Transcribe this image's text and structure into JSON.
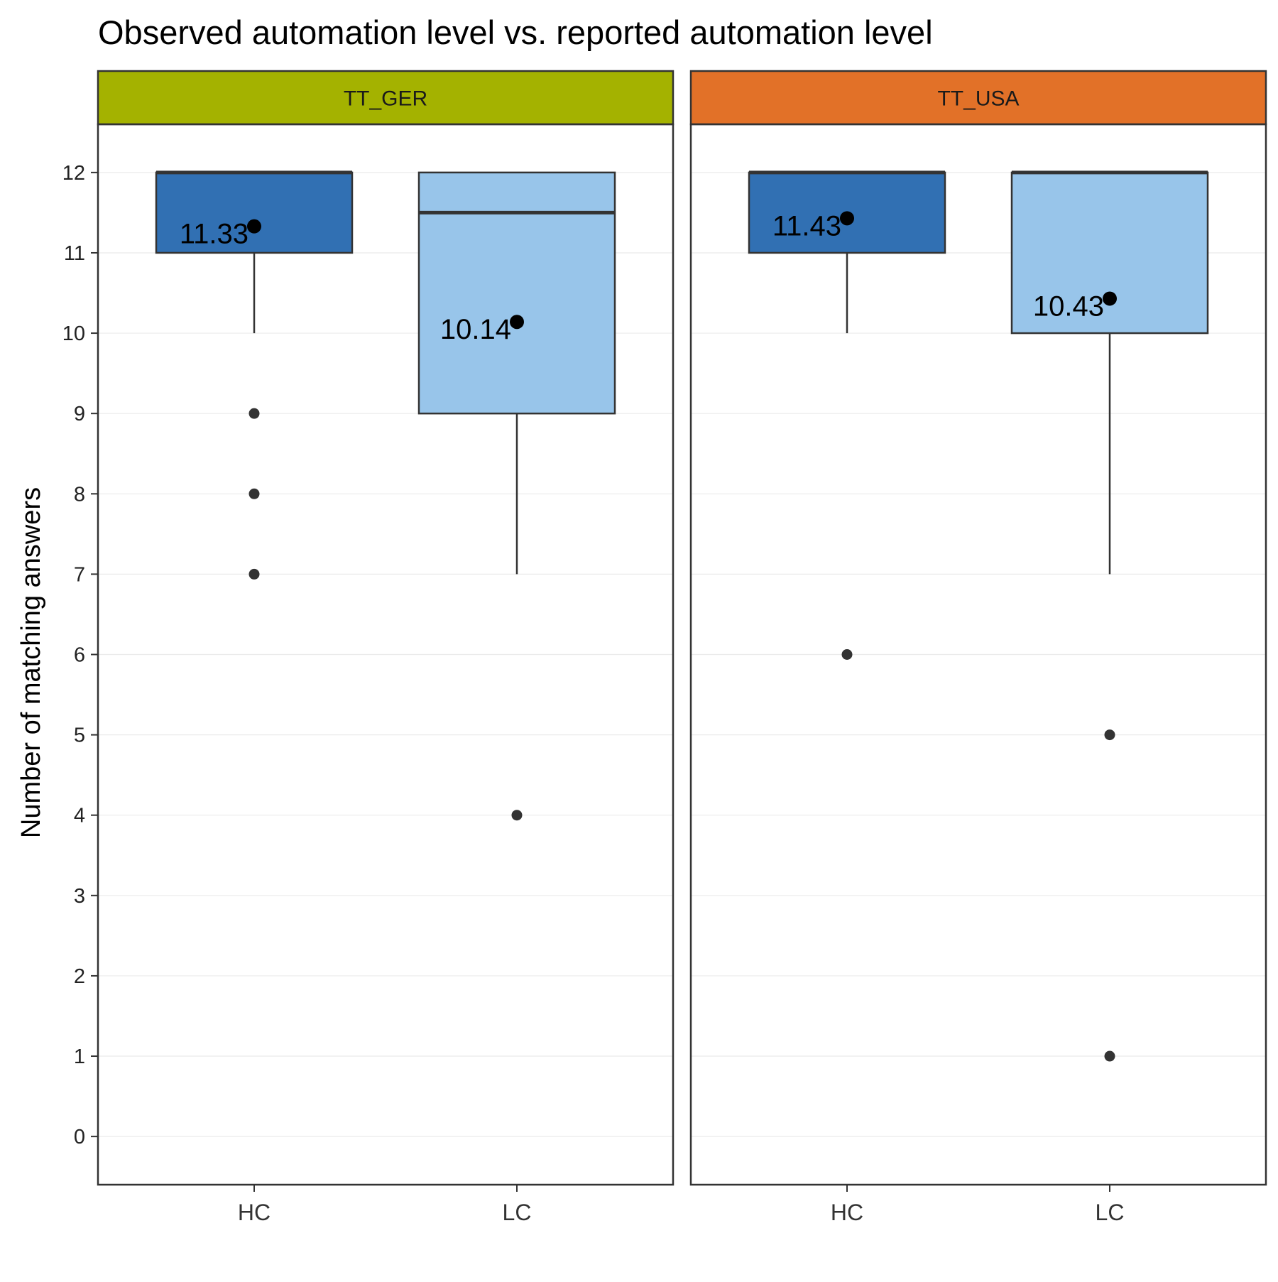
{
  "chart_data": {
    "type": "boxplot",
    "title": "Observed automation level vs. reported automation level",
    "xlabel": "",
    "ylabel": "Number of matching answers",
    "ylim": [
      -0.6,
      12.6
    ],
    "yticks": [
      0,
      1,
      2,
      3,
      4,
      5,
      6,
      7,
      8,
      9,
      10,
      11,
      12
    ],
    "grid": true,
    "legend": "none",
    "colors": {
      "HC": "#3170b3",
      "LC": "#98c5ea",
      "TT_GER": "#a4b200",
      "TT_USA": "#e27128"
    },
    "panels": [
      {
        "name": "TT_GER",
        "strip_color": "#a4b200",
        "groups": [
          {
            "category": "HC",
            "min": 10,
            "q1": 11,
            "median": 12,
            "q3": 12,
            "max": 12,
            "mean": 11.33,
            "mean_label": "11.33",
            "outliers": [
              9,
              8,
              7
            ]
          },
          {
            "category": "LC",
            "min": 7,
            "q1": 9,
            "median": 11.5,
            "q3": 12,
            "max": 12,
            "mean": 10.14,
            "mean_label": "10.14",
            "outliers": [
              4
            ]
          }
        ]
      },
      {
        "name": "TT_USA",
        "strip_color": "#e27128",
        "groups": [
          {
            "category": "HC",
            "min": 10,
            "q1": 11,
            "median": 12,
            "q3": 12,
            "max": 12,
            "mean": 11.43,
            "mean_label": "11.43",
            "outliers": [
              6
            ]
          },
          {
            "category": "LC",
            "min": 7,
            "q1": 10,
            "median": 12,
            "q3": 12,
            "max": 12,
            "mean": 10.43,
            "mean_label": "10.43",
            "outliers": [
              5,
              1
            ]
          }
        ]
      }
    ]
  }
}
